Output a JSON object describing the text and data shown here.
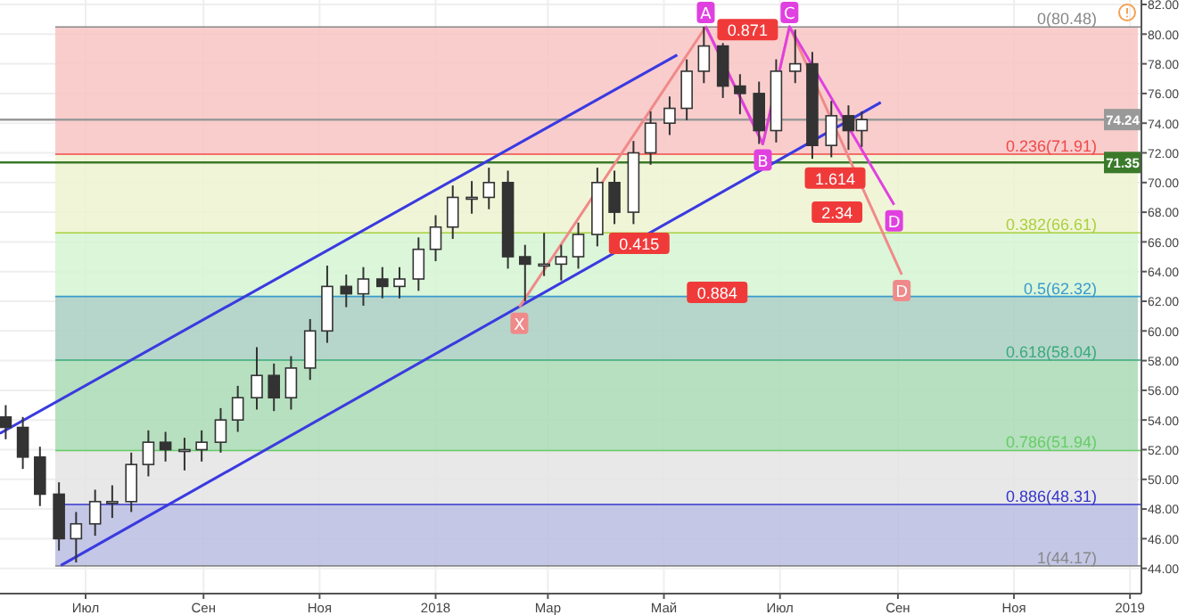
{
  "chart_data": {
    "type": "candlestick",
    "x": [
      "2017-05-20",
      "2017-05-29",
      "2017-06-07",
      "2017-06-17",
      "2017-06-26",
      "2017-07-06",
      "2017-07-15",
      "2017-07-25",
      "2017-08-03",
      "2017-08-12",
      "2017-08-22",
      "2017-08-31",
      "2017-09-10",
      "2017-09-19",
      "2017-09-29",
      "2017-10-08",
      "2017-10-17",
      "2017-10-27",
      "2017-11-05",
      "2017-11-15",
      "2017-11-24",
      "2017-12-04",
      "2017-12-13",
      "2017-12-23",
      "2018-01-01",
      "2018-01-10",
      "2018-01-20",
      "2018-01-29",
      "2018-02-08",
      "2018-02-17",
      "2018-02-27",
      "2018-03-08",
      "2018-03-17",
      "2018-03-27",
      "2018-04-05",
      "2018-04-15",
      "2018-04-24",
      "2018-05-04",
      "2018-05-13",
      "2018-05-22",
      "2018-06-01",
      "2018-06-10",
      "2018-06-20",
      "2018-06-29",
      "2018-07-09",
      "2018-07-18",
      "2018-07-28",
      "2018-08-06",
      "2018-08-13"
    ],
    "ohlc": [
      [
        54.2,
        55,
        52.7,
        53.5
      ],
      [
        53.5,
        54.2,
        50.7,
        51.5
      ],
      [
        51.5,
        52.2,
        48.2,
        49
      ],
      [
        49,
        49.8,
        45.2,
        46
      ],
      [
        46,
        47.8,
        44.4,
        47
      ],
      [
        47,
        49.3,
        46.2,
        48.5
      ],
      [
        48.5,
        49.6,
        47.4,
        48.5
      ],
      [
        48.5,
        51.8,
        47.8,
        51
      ],
      [
        51,
        53.3,
        50.2,
        52.5
      ],
      [
        52.5,
        53.2,
        51.2,
        52
      ],
      [
        52,
        52.8,
        50.6,
        52
      ],
      [
        52,
        53.3,
        51.2,
        52.5
      ],
      [
        52.5,
        54.8,
        51.8,
        54
      ],
      [
        54,
        56.3,
        53.2,
        55.5
      ],
      [
        55.5,
        58.9,
        54.7,
        57
      ],
      [
        57,
        57.8,
        54.6,
        55.5
      ],
      [
        55.5,
        58.3,
        54.7,
        57.5
      ],
      [
        57.5,
        60.8,
        56.7,
        60
      ],
      [
        60,
        64.4,
        59.2,
        63
      ],
      [
        63,
        63.8,
        61.6,
        62.5
      ],
      [
        62.5,
        64.3,
        61.7,
        63.5
      ],
      [
        63.5,
        64.3,
        62.2,
        63
      ],
      [
        63,
        64.3,
        62.2,
        63.5
      ],
      [
        63.5,
        66.3,
        62.7,
        65.5
      ],
      [
        65.5,
        67.8,
        64.7,
        67
      ],
      [
        67,
        69.8,
        66.2,
        69
      ],
      [
        69,
        70.1,
        67.9,
        69
      ],
      [
        69,
        71,
        68.2,
        70
      ],
      [
        70,
        70.8,
        64.2,
        65
      ],
      [
        65,
        65.8,
        62,
        64.5
      ],
      [
        64.5,
        66.6,
        63.7,
        64.5
      ],
      [
        64.5,
        65.8,
        63.4,
        65
      ],
      [
        65,
        67.3,
        64.2,
        66.5
      ],
      [
        66.5,
        71,
        65.7,
        70
      ],
      [
        70,
        70.8,
        67.2,
        68
      ],
      [
        68,
        72.8,
        67.2,
        72
      ],
      [
        72,
        74.8,
        71.2,
        74
      ],
      [
        74,
        75.8,
        73.2,
        75
      ],
      [
        75,
        78.3,
        74.2,
        77.5
      ],
      [
        77.5,
        80.5,
        76.7,
        79.2
      ],
      [
        79.2,
        79.4,
        75.7,
        76.5
      ],
      [
        76.5,
        77.3,
        74.6,
        76
      ],
      [
        76,
        76.8,
        72.6,
        73.5
      ],
      [
        73.5,
        78.3,
        72.7,
        77.5
      ],
      [
        77.5,
        80.3,
        76.7,
        78
      ],
      [
        78,
        78.8,
        71.6,
        72.5
      ],
      [
        72.5,
        75.5,
        71.7,
        74.5
      ],
      [
        74.5,
        75.2,
        72.2,
        73.5
      ],
      [
        73.5,
        74.8,
        72.4,
        74.24
      ]
    ],
    "series": [
      {
        "type": "line",
        "color": "#3a3ae0",
        "x": [
          "2017-05-17",
          "2018-05-08"
        ],
        "values": [
          53.1,
          78.6
        ]
      },
      {
        "type": "line",
        "color": "#3a3ae0",
        "x": [
          "2017-06-18",
          "2018-08-23"
        ],
        "values": [
          44.2,
          75.4
        ]
      },
      {
        "type": "line",
        "color": "#f08a8a",
        "x": [
          "2018-02-14",
          "2018-05-23",
          "2018-06-22",
          "2018-07-06",
          "2018-09-03"
        ],
        "values": [
          61.6,
          80.5,
          72.6,
          80.5,
          63.8
        ],
        "value_labels": [
          "X",
          null,
          null,
          null,
          "D"
        ]
      },
      {
        "type": "line",
        "color": "#e040e0",
        "x": [
          "2018-05-23",
          "2018-06-22",
          "2018-07-06",
          "2018-08-30"
        ],
        "values": [
          80.5,
          72.6,
          80.5,
          68.5
        ],
        "value_labels": [
          "A",
          "B",
          "C",
          "D"
        ]
      }
    ],
    "bands": [
      {
        "axis": "y",
        "from": 71.91,
        "to": 80.48,
        "color": "#f9c4c4"
      },
      {
        "axis": "y",
        "from": 66.61,
        "to": 71.91,
        "color": "#eef3d0"
      },
      {
        "axis": "y",
        "from": 62.32,
        "to": 66.61,
        "color": "#d5f5d2"
      },
      {
        "axis": "y",
        "from": 58.04,
        "to": 62.32,
        "color": "#a9cfc2"
      },
      {
        "axis": "y",
        "from": 51.94,
        "to": 58.04,
        "color": "#a9dab4"
      },
      {
        "axis": "y",
        "from": 48.31,
        "to": 51.94,
        "color": "#e4e4e4"
      },
      {
        "axis": "y",
        "from": 44.17,
        "to": 48.31,
        "color": "#babde2"
      }
    ],
    "ref_lines": [
      {
        "axis": "y",
        "value": 80.48,
        "label": "0(80.48)",
        "color": "#888888"
      },
      {
        "axis": "y",
        "value": 71.91,
        "label": "0.236(71.91)",
        "color": "#f04848"
      },
      {
        "axis": "y",
        "value": 66.61,
        "label": "0.382(66.61)",
        "color": "#a8d040"
      },
      {
        "axis": "y",
        "value": 62.32,
        "label": "0.5(62.32)",
        "color": "#3a9acc"
      },
      {
        "axis": "y",
        "value": 58.04,
        "label": "0.618(58.04)",
        "color": "#3aaa7a"
      },
      {
        "axis": "y",
        "value": 51.94,
        "label": "0.786(51.94)",
        "color": "#66cc66"
      },
      {
        "axis": "y",
        "value": 48.31,
        "label": "0.886(48.31)",
        "color": "#3434cc"
      },
      {
        "axis": "y",
        "value": 44.17,
        "label": "1(44.17)",
        "color": "#888888"
      },
      {
        "axis": "y",
        "value": 74.24,
        "label": "74.24",
        "color": "#999999",
        "line_style": "solid"
      },
      {
        "axis": "y",
        "value": 71.35,
        "label": "71.35",
        "color": "#3a7a2a",
        "line_style": "solid"
      }
    ],
    "annotations": [
      {
        "text": "0.871",
        "x": "2018-06-14",
        "y": 80.3
      },
      {
        "text": "1.614",
        "x": "2018-07-30",
        "y": 70.3
      },
      {
        "text": "0.415",
        "x": "2018-04-18",
        "y": 65.9
      },
      {
        "text": "0.884",
        "x": "2018-05-29",
        "y": 62.6
      },
      {
        "text": "2.34",
        "x": "2018-07-31",
        "y": 68
      }
    ],
    "xlim": [
      "2017-05-17",
      "2019-01-07"
    ],
    "xticks": [
      {
        "value": "2017-07-01",
        "label": "Июл"
      },
      {
        "value": "2017-09-01",
        "label": "Сен"
      },
      {
        "value": "2017-11-01",
        "label": "Ноя"
      },
      {
        "value": "2018-01-01",
        "label": "2018"
      },
      {
        "value": "2018-03-01",
        "label": "Мар"
      },
      {
        "value": "2018-05-01",
        "label": "Май"
      },
      {
        "value": "2018-07-01",
        "label": "Июл"
      },
      {
        "value": "2018-09-01",
        "label": "Сен"
      },
      {
        "value": "2018-11-01",
        "label": "Ноя"
      },
      {
        "value": "2019-01-01",
        "label": "2019"
      }
    ],
    "ylim": [
      42.3,
      82.3
    ],
    "yticks": [
      {
        "value": 44,
        "label": "44.00"
      },
      {
        "value": 46,
        "label": "46.00"
      },
      {
        "value": 48,
        "label": "48.00"
      },
      {
        "value": 50,
        "label": "50.00"
      },
      {
        "value": 52,
        "label": "52.00"
      },
      {
        "value": 54,
        "label": "54.00"
      },
      {
        "value": 56,
        "label": "56.00"
      },
      {
        "value": 58,
        "label": "58.00"
      },
      {
        "value": 60,
        "label": "60.00"
      },
      {
        "value": 62,
        "label": "62.00"
      },
      {
        "value": 64,
        "label": "64.00"
      },
      {
        "value": 66,
        "label": "66.00"
      },
      {
        "value": 68,
        "label": "68.00"
      },
      {
        "value": 70,
        "label": "70.00"
      },
      {
        "value": 72,
        "label": "72.00"
      },
      {
        "value": 74,
        "label": "74.00"
      },
      {
        "value": 76,
        "label": "76.00"
      },
      {
        "value": 78,
        "label": "78.00"
      },
      {
        "value": 80,
        "label": "80.00"
      },
      {
        "value": 82,
        "label": "82.00"
      }
    ],
    "grid": true
  }
}
